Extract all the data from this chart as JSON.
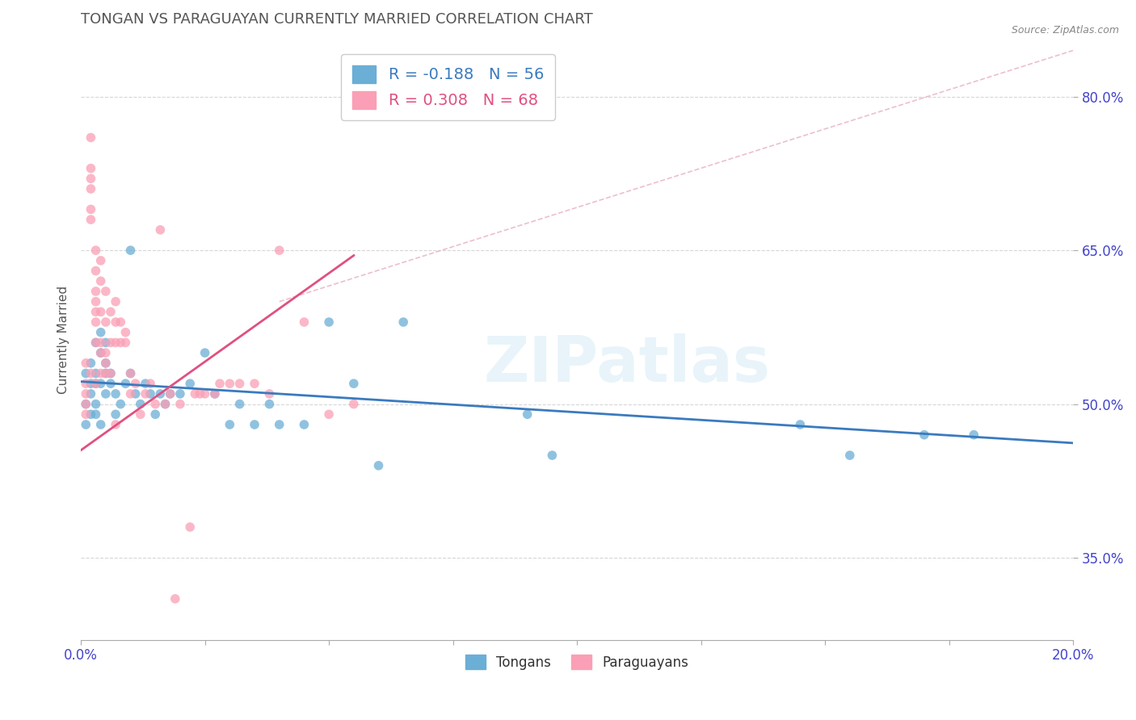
{
  "title": "TONGAN VS PARAGUAYAN CURRENTLY MARRIED CORRELATION CHART",
  "source": "Source: ZipAtlas.com",
  "xlabel": "",
  "ylabel": "Currently Married",
  "xlim": [
    0.0,
    0.2
  ],
  "ylim": [
    0.27,
    0.855
  ],
  "yticks": [
    0.35,
    0.5,
    0.65,
    0.8
  ],
  "ytick_labels": [
    "35.0%",
    "50.0%",
    "65.0%",
    "80.0%"
  ],
  "xticks": [
    0.0,
    0.025,
    0.05,
    0.075,
    0.1,
    0.125,
    0.15,
    0.175,
    0.2
  ],
  "xtick_labels": [
    "0.0%",
    "",
    "",
    "",
    "",
    "",
    "",
    "",
    "20.0%"
  ],
  "tongan_color": "#6baed6",
  "paraguayan_color": "#fa9fb5",
  "tongan_R": -0.188,
  "tongan_N": 56,
  "paraguayan_R": 0.308,
  "paraguayan_N": 68,
  "legend_label_1": "Tongans",
  "legend_label_2": "Paraguayans",
  "watermark": "ZIPatlas",
  "background_color": "#ffffff",
  "grid_color": "#cccccc",
  "axis_color": "#4444cc",
  "title_color": "#555555",
  "tongan_line": [
    0.522,
    0.462
  ],
  "paraguayan_line_x": [
    0.0,
    0.055
  ],
  "paraguayan_line_y": [
    0.455,
    0.645
  ],
  "ref_line_x": [
    0.04,
    0.2
  ],
  "ref_line_y": [
    0.6,
    0.845
  ],
  "tongan_scatter": {
    "x": [
      0.001,
      0.001,
      0.001,
      0.002,
      0.002,
      0.002,
      0.002,
      0.003,
      0.003,
      0.003,
      0.003,
      0.003,
      0.004,
      0.004,
      0.004,
      0.004,
      0.005,
      0.005,
      0.005,
      0.005,
      0.006,
      0.006,
      0.007,
      0.007,
      0.008,
      0.009,
      0.01,
      0.01,
      0.011,
      0.012,
      0.013,
      0.014,
      0.015,
      0.016,
      0.017,
      0.018,
      0.02,
      0.022,
      0.025,
      0.027,
      0.03,
      0.032,
      0.035,
      0.038,
      0.04,
      0.045,
      0.05,
      0.055,
      0.06,
      0.065,
      0.09,
      0.095,
      0.145,
      0.155,
      0.17,
      0.18
    ],
    "y": [
      0.53,
      0.5,
      0.48,
      0.54,
      0.51,
      0.49,
      0.52,
      0.56,
      0.52,
      0.5,
      0.49,
      0.53,
      0.55,
      0.57,
      0.52,
      0.48,
      0.53,
      0.51,
      0.56,
      0.54,
      0.52,
      0.53,
      0.49,
      0.51,
      0.5,
      0.52,
      0.65,
      0.53,
      0.51,
      0.5,
      0.52,
      0.51,
      0.49,
      0.51,
      0.5,
      0.51,
      0.51,
      0.52,
      0.55,
      0.51,
      0.48,
      0.5,
      0.48,
      0.5,
      0.48,
      0.48,
      0.58,
      0.52,
      0.44,
      0.58,
      0.49,
      0.45,
      0.48,
      0.45,
      0.47,
      0.47
    ]
  },
  "paraguayan_scatter": {
    "x": [
      0.001,
      0.001,
      0.001,
      0.001,
      0.001,
      0.002,
      0.002,
      0.002,
      0.002,
      0.002,
      0.002,
      0.002,
      0.003,
      0.003,
      0.003,
      0.003,
      0.003,
      0.003,
      0.003,
      0.003,
      0.004,
      0.004,
      0.004,
      0.004,
      0.004,
      0.004,
      0.005,
      0.005,
      0.005,
      0.005,
      0.005,
      0.006,
      0.006,
      0.006,
      0.007,
      0.007,
      0.007,
      0.008,
      0.008,
      0.009,
      0.009,
      0.01,
      0.01,
      0.011,
      0.012,
      0.013,
      0.014,
      0.015,
      0.016,
      0.017,
      0.018,
      0.019,
      0.02,
      0.022,
      0.023,
      0.024,
      0.025,
      0.027,
      0.028,
      0.03,
      0.032,
      0.035,
      0.038,
      0.04,
      0.045,
      0.05,
      0.055,
      0.007
    ],
    "y": [
      0.52,
      0.54,
      0.51,
      0.5,
      0.49,
      0.76,
      0.71,
      0.69,
      0.72,
      0.68,
      0.73,
      0.53,
      0.61,
      0.63,
      0.59,
      0.65,
      0.56,
      0.58,
      0.6,
      0.52,
      0.64,
      0.59,
      0.62,
      0.53,
      0.55,
      0.56,
      0.61,
      0.58,
      0.53,
      0.54,
      0.55,
      0.56,
      0.59,
      0.53,
      0.58,
      0.6,
      0.56,
      0.56,
      0.58,
      0.56,
      0.57,
      0.53,
      0.51,
      0.52,
      0.49,
      0.51,
      0.52,
      0.5,
      0.67,
      0.5,
      0.51,
      0.31,
      0.5,
      0.38,
      0.51,
      0.51,
      0.51,
      0.51,
      0.52,
      0.52,
      0.52,
      0.52,
      0.51,
      0.65,
      0.58,
      0.49,
      0.5,
      0.48
    ]
  }
}
